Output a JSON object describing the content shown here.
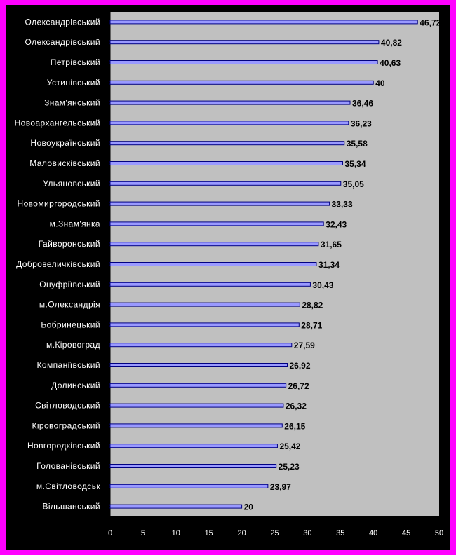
{
  "colors": {
    "page_background": "#ff00ff",
    "chart_background": "#000000",
    "plot_area": "#c0c0c0",
    "bar_fill": "#9999ff",
    "bar_stroke": "#000080",
    "category_text": "#ffffff",
    "value_text": "#000000"
  },
  "chart_data": {
    "type": "bar",
    "orientation": "horizontal",
    "title": "",
    "xlabel": "",
    "ylabel": "",
    "xlim": [
      0,
      50
    ],
    "x_ticks": [
      0,
      5,
      10,
      15,
      20,
      25,
      30,
      35,
      40,
      45,
      50
    ],
    "grid": false,
    "legend": "none",
    "categories": [
      "Олександрівський",
      "Олександрівський",
      "Петрівський",
      "Устинівський",
      "Знам'янський",
      "Новоархангельський",
      "Новоукраїнський",
      "Маловисківський",
      "Ульяновський",
      "Новомиргородський",
      "м.Знам'янка",
      "Гайворонський",
      "Добровеличківський",
      "Онуфріївський",
      "м.Олександрія",
      "Бобринецький",
      "м.Кіровоград",
      "Компаніївський",
      "Долинський",
      "Світловодський",
      "Кіровоградський",
      "Новгородківський",
      "Голованівський",
      "м.Світловодськ",
      "Вільшанський"
    ],
    "values": [
      46.72,
      40.82,
      40.63,
      40,
      36.46,
      36.23,
      35.58,
      35.34,
      35.05,
      33.33,
      32.43,
      31.65,
      31.34,
      30.43,
      28.82,
      28.71,
      27.59,
      26.92,
      26.72,
      26.32,
      26.15,
      25.42,
      25.23,
      23.97,
      20
    ],
    "value_labels": [
      "46,72",
      "40,82",
      "40,63",
      "40",
      "36,46",
      "36,23",
      "35,58",
      "35,34",
      "35,05",
      "33,33",
      "32,43",
      "31,65",
      "31,34",
      "30,43",
      "28,82",
      "28,71",
      "27,59",
      "26,92",
      "26,72",
      "26,32",
      "26,15",
      "25,42",
      "25,23",
      "23,97",
      "20"
    ]
  }
}
